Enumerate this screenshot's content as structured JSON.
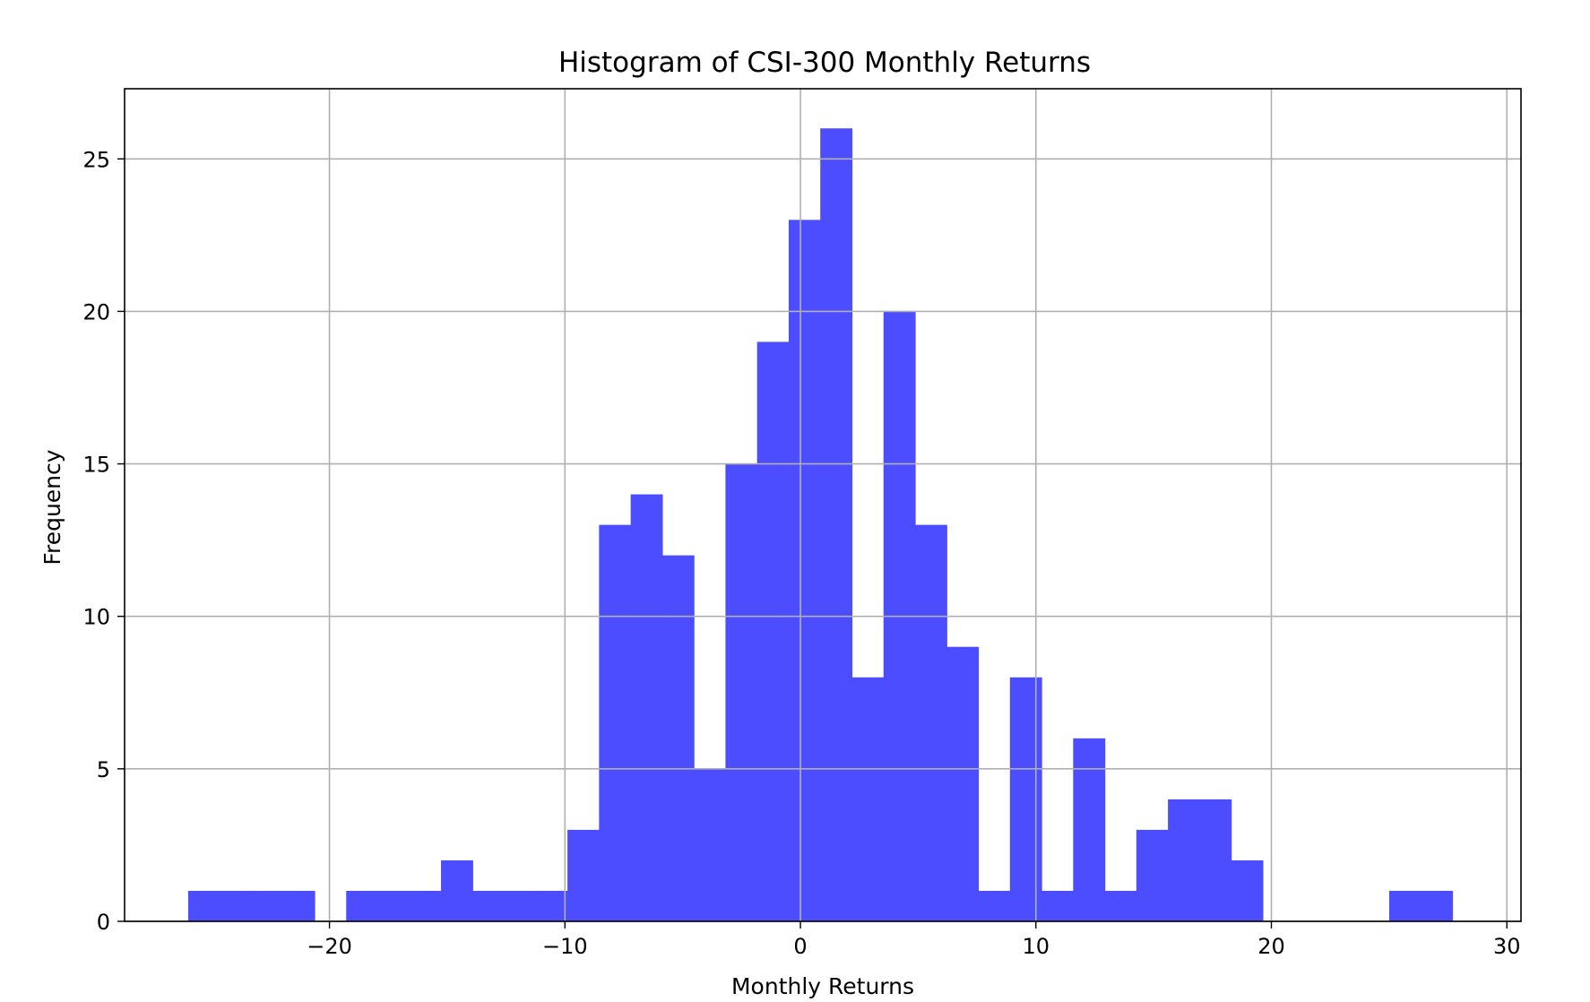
{
  "chart_data": {
    "type": "bar",
    "title": "Histogram of CSI-300 Monthly Returns",
    "xlabel": "Monthly Returns",
    "ylabel": "Frequency",
    "xlim": [
      -28.7,
      30.6
    ],
    "ylim": [
      0,
      27.3
    ],
    "grid": true,
    "bar_color": "#4b4dff",
    "grid_color": "#b0b0b0",
    "x_ticks": [
      {
        "value": -20,
        "label": "−20"
      },
      {
        "value": -10,
        "label": "−10"
      },
      {
        "value": 0,
        "label": "0"
      },
      {
        "value": 10,
        "label": "10"
      },
      {
        "value": 20,
        "label": "20"
      },
      {
        "value": 30,
        "label": "30"
      }
    ],
    "y_ticks": [
      {
        "value": 0,
        "label": "0"
      },
      {
        "value": 5,
        "label": "5"
      },
      {
        "value": 10,
        "label": "10"
      },
      {
        "value": 15,
        "label": "15"
      },
      {
        "value": 20,
        "label": "20"
      },
      {
        "value": 25,
        "label": "25"
      }
    ],
    "bin_start": -26.0,
    "bin_width": 1.3422,
    "counts": [
      1,
      1,
      1,
      1,
      0,
      1,
      1,
      1,
      2,
      1,
      1,
      1,
      3,
      13,
      14,
      12,
      5,
      15,
      19,
      23,
      26,
      8,
      20,
      13,
      9,
      1,
      8,
      1,
      6,
      1,
      3,
      4,
      4,
      2,
      0,
      0,
      0,
      0,
      1,
      1
    ]
  }
}
